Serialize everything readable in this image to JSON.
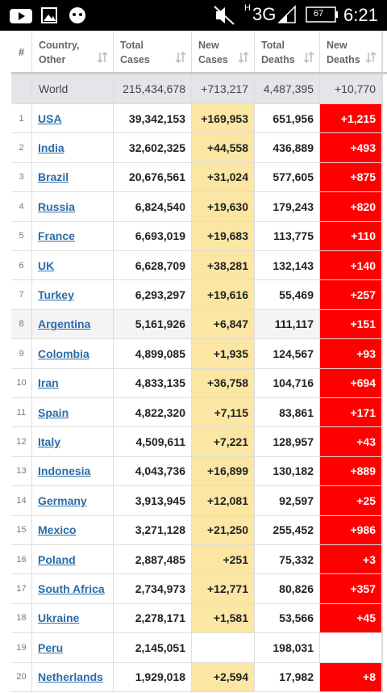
{
  "status_bar": {
    "network_prefix": "H",
    "network": "3G",
    "battery": "67",
    "time": "6:21"
  },
  "table": {
    "headers": [
      "#",
      "Country, Other",
      "Total Cases",
      "New Cases",
      "Total Deaths",
      "New Deaths"
    ],
    "world": [
      "World",
      "215,434,678",
      "+713,217",
      "4,487,395",
      "+10,770"
    ],
    "rows": [
      [
        "1",
        "USA",
        "39,342,153",
        "+169,953",
        "651,956",
        "+1,215"
      ],
      [
        "2",
        "India",
        "32,602,325",
        "+44,558",
        "436,889",
        "+493"
      ],
      [
        "3",
        "Brazil",
        "20,676,561",
        "+31,024",
        "577,605",
        "+875"
      ],
      [
        "4",
        "Russia",
        "6,824,540",
        "+19,630",
        "179,243",
        "+820"
      ],
      [
        "5",
        "France",
        "6,693,019",
        "+19,683",
        "113,775",
        "+110"
      ],
      [
        "6",
        "UK",
        "6,628,709",
        "+38,281",
        "132,143",
        "+140"
      ],
      [
        "7",
        "Turkey",
        "6,293,297",
        "+19,616",
        "55,469",
        "+257"
      ],
      [
        "8",
        "Argentina",
        "5,161,926",
        "+6,847",
        "111,117",
        "+151"
      ],
      [
        "9",
        "Colombia",
        "4,899,085",
        "+1,935",
        "124,567",
        "+93"
      ],
      [
        "10",
        "Iran",
        "4,833,135",
        "+36,758",
        "104,716",
        "+694"
      ],
      [
        "11",
        "Spain",
        "4,822,320",
        "+7,115",
        "83,861",
        "+171"
      ],
      [
        "12",
        "Italy",
        "4,509,611",
        "+7,221",
        "128,957",
        "+43"
      ],
      [
        "13",
        "Indonesia",
        "4,043,736",
        "+16,899",
        "130,182",
        "+889"
      ],
      [
        "14",
        "Germany",
        "3,913,945",
        "+12,081",
        "92,597",
        "+25"
      ],
      [
        "15",
        "Mexico",
        "3,271,128",
        "+21,250",
        "255,452",
        "+986"
      ],
      [
        "16",
        "Poland",
        "2,887,485",
        "+251",
        "75,332",
        "+3"
      ],
      [
        "17",
        "South Africa",
        "2,734,973",
        "+12,771",
        "80,826",
        "+357"
      ],
      [
        "18",
        "Ukraine",
        "2,278,171",
        "+1,581",
        "53,566",
        "+45"
      ],
      [
        "19",
        "Peru",
        "2,145,051",
        null,
        "198,031",
        null
      ],
      [
        "20",
        "Netherlands",
        "1,929,018",
        "+2,594",
        "17,982",
        "+8"
      ]
    ]
  }
}
